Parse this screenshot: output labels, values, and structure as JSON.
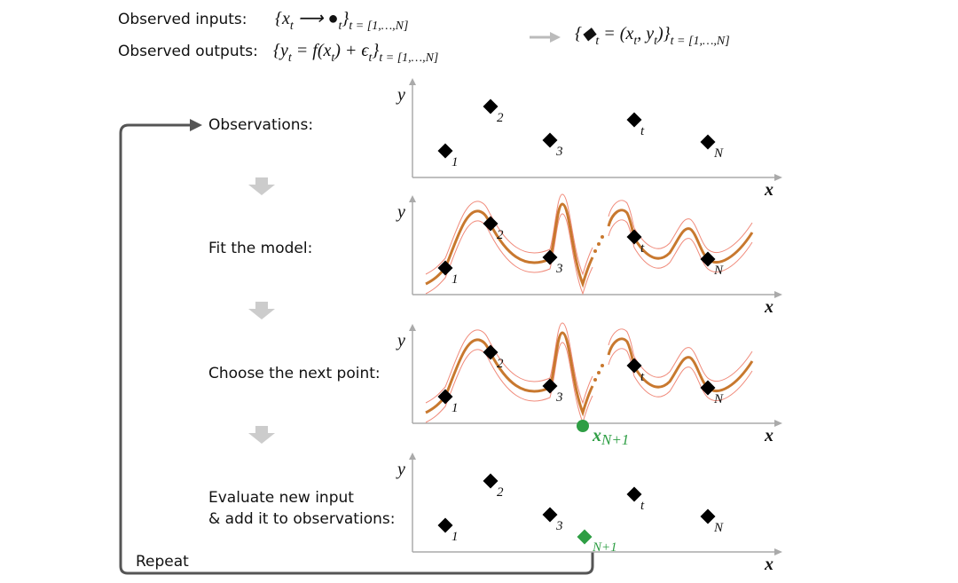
{
  "header": {
    "inputs_label": "Observed inputs:",
    "inputs_formula": [
      {
        "text": "{x",
        "sub": false
      },
      {
        "text": "t",
        "sub": true
      },
      {
        "text": " ⟶ ●",
        "sub": false
      },
      {
        "text": "t",
        "sub": true
      },
      {
        "text": "}",
        "sub": false
      },
      {
        "text": "t = [1,…,N]",
        "sub": true
      }
    ],
    "outputs_label": "Observed outputs:",
    "outputs_formula": [
      {
        "text": "{y",
        "sub": false
      },
      {
        "text": "t",
        "sub": true
      },
      {
        "text": " = f(x",
        "sub": false
      },
      {
        "text": "t",
        "sub": true
      },
      {
        "text": ") + ϵ",
        "sub": false
      },
      {
        "text": "t",
        "sub": true
      },
      {
        "text": "}",
        "sub": false
      },
      {
        "text": "t = [1,…,N]",
        "sub": true
      }
    ],
    "pairs_formula": [
      {
        "text": "{◆",
        "sub": false
      },
      {
        "text": "t",
        "sub": true
      },
      {
        "text": " = (x",
        "sub": false
      },
      {
        "text": "t",
        "sub": true
      },
      {
        "text": ", y",
        "sub": false
      },
      {
        "text": "t",
        "sub": true
      },
      {
        "text": ")}",
        "sub": false
      },
      {
        "text": "t = [1,…,N]",
        "sub": true
      }
    ]
  },
  "steps": [
    "Observations:",
    "Fit the model:",
    "Choose the next point:",
    [
      "Evaluate new input",
      "& add it to observations:"
    ]
  ],
  "repeat": "Repeat",
  "axes": {
    "y": "y",
    "x": "x"
  },
  "point_labels": [
    "1",
    "2",
    "3",
    "t",
    "N"
  ],
  "next_point_label": "x",
  "next_point_sub": "N+1",
  "new_observation_label": "N+1"
}
